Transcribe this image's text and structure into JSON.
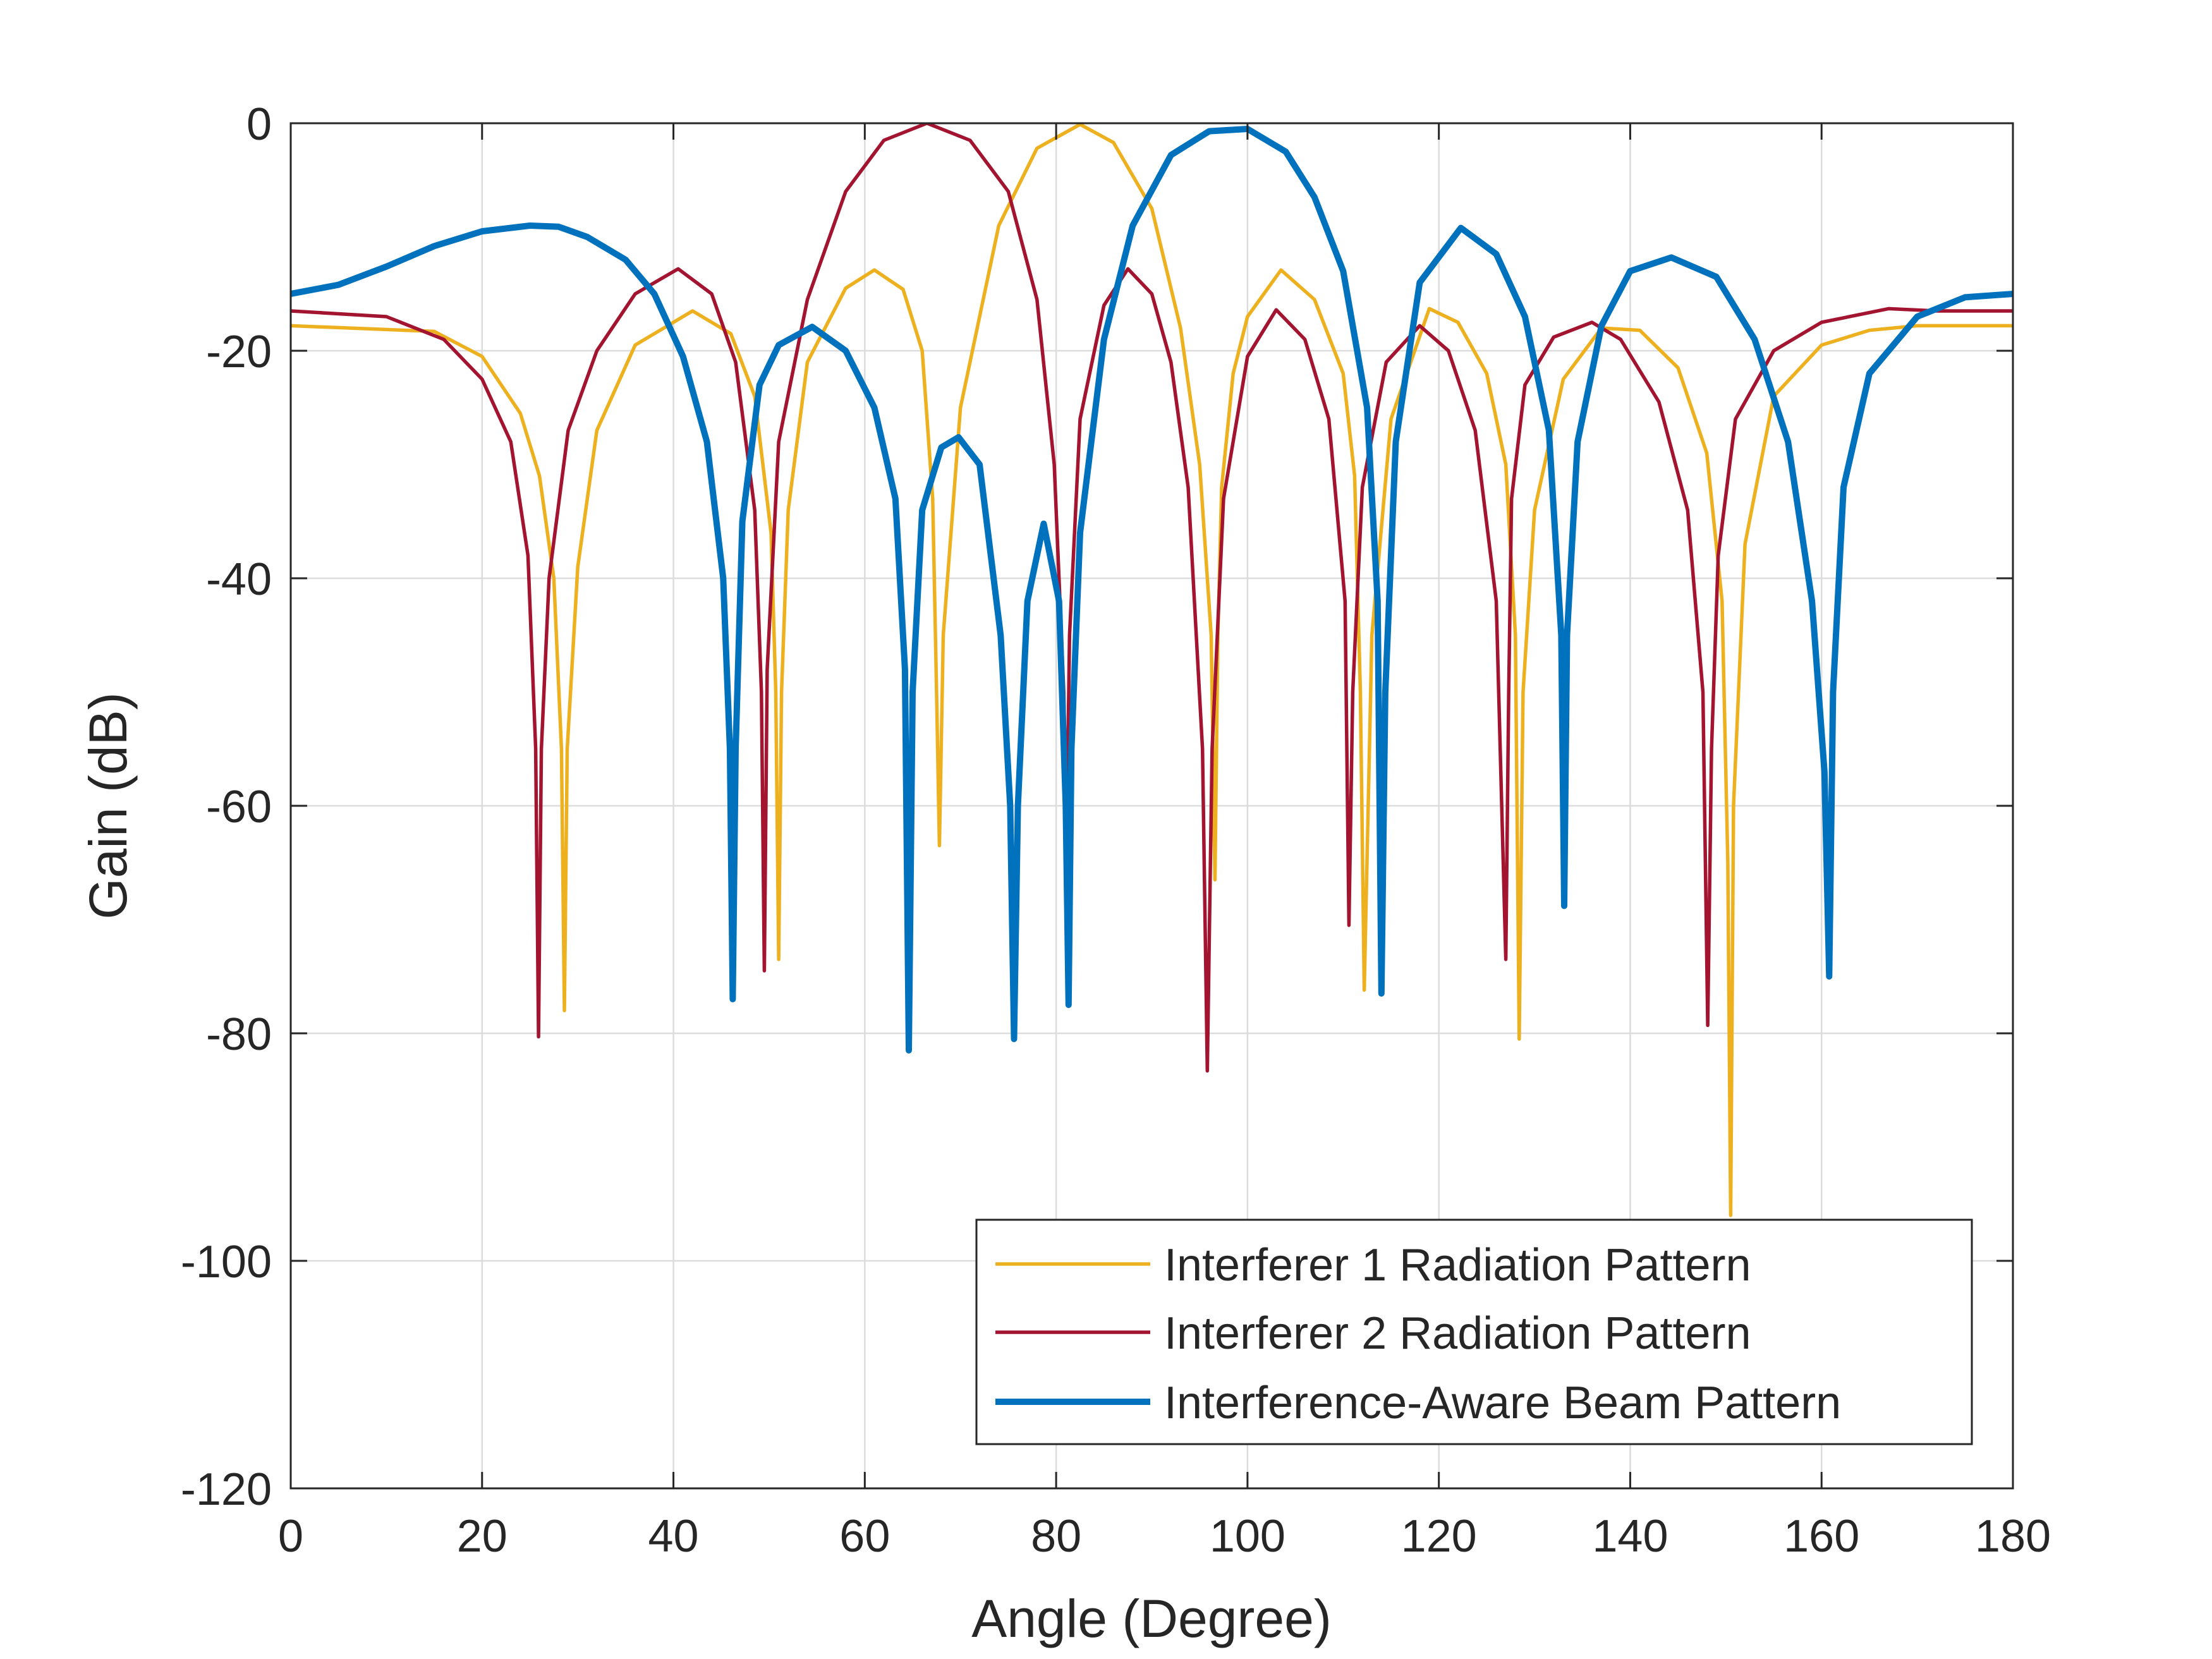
{
  "chart_data": {
    "type": "line",
    "title": "",
    "xlabel": "Angle (Degree)",
    "ylabel": "Gain (dB)",
    "xlim": [
      0,
      180
    ],
    "ylim": [
      -120,
      0
    ],
    "xticks": [
      0,
      20,
      40,
      60,
      80,
      100,
      120,
      140,
      160,
      180
    ],
    "yticks": [
      0,
      -20,
      -40,
      -60,
      -80,
      -100,
      -120
    ],
    "grid": true,
    "legend_position": "bottom-right",
    "series": [
      {
        "name": "Interferer 1 Radiation Pattern",
        "color": "#EDB120",
        "width": "thin",
        "x": [
          0,
          15,
          20,
          24,
          26,
          27.5,
          28.3,
          28.6,
          28.9,
          30,
          32,
          36,
          42,
          46,
          48.5,
          50.2,
          50.7,
          51.0,
          51.3,
          52,
          54,
          58,
          61,
          64,
          66,
          67.1,
          67.5,
          67.8,
          68.2,
          70,
          74,
          78,
          82.5,
          86,
          90,
          93,
          95,
          96.2,
          96.6,
          96.9,
          97.3,
          98.5,
          100,
          103.5,
          107,
          110,
          111.2,
          111.8,
          112.2,
          113,
          115,
          119,
          122,
          125,
          127,
          128.0,
          128.4,
          128.8,
          130,
          133,
          137,
          141,
          145,
          148,
          149.6,
          150.2,
          150.5,
          150.8,
          152,
          155,
          160,
          165,
          170,
          180
        ],
        "y": [
          -17.8,
          -18.3,
          -20.5,
          -25.5,
          -31,
          -40,
          -55,
          -78,
          -55,
          -39,
          -27,
          -19.5,
          -16.5,
          -18.5,
          -24,
          -36,
          -50,
          -73.5,
          -50,
          -34,
          -21,
          -14.5,
          -12.9,
          -14.6,
          -20,
          -33,
          -50,
          -63.5,
          -45,
          -25,
          -9,
          -2.2,
          -0.1,
          -1.7,
          -7.5,
          -18,
          -30,
          -45,
          -66.5,
          -45,
          -32,
          -22,
          -17,
          -12.9,
          -15.5,
          -22,
          -31,
          -50,
          -76.2,
          -45,
          -26,
          -16.3,
          -17.5,
          -22,
          -30,
          -45,
          -80.5,
          -50,
          -34,
          -22.5,
          -18,
          -18.2,
          -21.5,
          -29,
          -42,
          -65,
          -96,
          -60,
          -37,
          -24,
          -19.5,
          -18.2,
          -17.8,
          -17.8
        ]
      },
      {
        "name": "Interferer 2 Radiation Pattern",
        "color": "#A2142F",
        "width": "thin",
        "x": [
          0,
          10,
          16,
          20,
          23,
          24.8,
          25.6,
          25.9,
          26.2,
          27,
          29,
          32,
          36,
          40.5,
          44,
          46.5,
          48.5,
          49.2,
          49.5,
          49.8,
          51,
          54,
          58,
          62,
          66.5,
          71,
          75,
          78,
          79.8,
          80.8,
          81.1,
          81.4,
          82.5,
          85,
          87.5,
          90,
          92,
          93.8,
          95.3,
          95.8,
          96.3,
          97.5,
          100,
          103,
          106,
          108.5,
          110.2,
          110.6,
          111,
          112,
          114.5,
          118,
          121,
          123.8,
          126,
          127.0,
          127.3,
          127.6,
          129,
          132,
          136,
          139,
          143,
          146,
          147.6,
          148.1,
          148.5,
          149.2,
          151,
          155,
          160,
          167,
          172,
          180
        ],
        "y": [
          -16.5,
          -17,
          -19,
          -22.5,
          -28,
          -38,
          -55,
          -80.3,
          -55,
          -40,
          -27,
          -20,
          -15,
          -12.8,
          -15,
          -21,
          -34,
          -50,
          -74.5,
          -48,
          -28,
          -15.5,
          -6,
          -1.5,
          0,
          -1.5,
          -6,
          -15.5,
          -30,
          -50,
          -63,
          -45,
          -26,
          -16,
          -12.8,
          -15,
          -21,
          -32,
          -55,
          -83.3,
          -55,
          -33,
          -20.5,
          -16.4,
          -19,
          -26,
          -42,
          -70.5,
          -50,
          -32,
          -21,
          -17.8,
          -20,
          -27,
          -42,
          -73.5,
          -50,
          -33,
          -23,
          -18.8,
          -17.5,
          -19,
          -24.5,
          -34,
          -50,
          -79.3,
          -55,
          -38,
          -26,
          -20,
          -17.5,
          -16.3,
          -16.5,
          -16.5
        ]
      },
      {
        "name": "Interference-Aware Beam Pattern",
        "color": "#0072BD",
        "width": "thick",
        "x": [
          0,
          5,
          10,
          15,
          20,
          25,
          28,
          31,
          35,
          38,
          41,
          43.5,
          45.2,
          45.9,
          46.2,
          46.5,
          47.2,
          49,
          51,
          54.5,
          58,
          61,
          63.2,
          64.2,
          64.6,
          65.0,
          66,
          68,
          69.8,
          72,
          74.2,
          75.2,
          75.6,
          76.0,
          77.0,
          78.7,
          80.3,
          81.0,
          81.3,
          81.6,
          82.5,
          85,
          88,
          92,
          96,
          100,
          104,
          107,
          110,
          112.5,
          113.6,
          114.0,
          114.4,
          115.5,
          118,
          122.3,
          126,
          129,
          131.5,
          132.8,
          133.1,
          133.4,
          134.5,
          137,
          140,
          144.3,
          149,
          153,
          156.5,
          159,
          160.3,
          160.8,
          161.2,
          162.3,
          165,
          170,
          175,
          180
        ],
        "y": [
          -15,
          -14.2,
          -12.6,
          -10.8,
          -9.5,
          -9.0,
          -9.1,
          -10,
          -12,
          -15,
          -20.5,
          -28,
          -40,
          -55,
          -77,
          -55,
          -35,
          -23,
          -19.5,
          -17.9,
          -20,
          -25,
          -33,
          -48,
          -81.5,
          -50,
          -34,
          -28.5,
          -27.6,
          -30,
          -45,
          -60,
          -80.5,
          -60,
          -42,
          -35.2,
          -42,
          -60,
          -77.5,
          -55,
          -36,
          -19,
          -9,
          -2.8,
          -0.7,
          -0.5,
          -2.5,
          -6.5,
          -13,
          -25,
          -42,
          -76.5,
          -50,
          -28,
          -14,
          -9.2,
          -11.5,
          -17,
          -27,
          -45,
          -68.8,
          -45,
          -28,
          -17.8,
          -13,
          -11.8,
          -13.5,
          -19,
          -28,
          -42,
          -57,
          -75,
          -50,
          -32,
          -22,
          -17,
          -15.3,
          -15
        ]
      }
    ]
  }
}
